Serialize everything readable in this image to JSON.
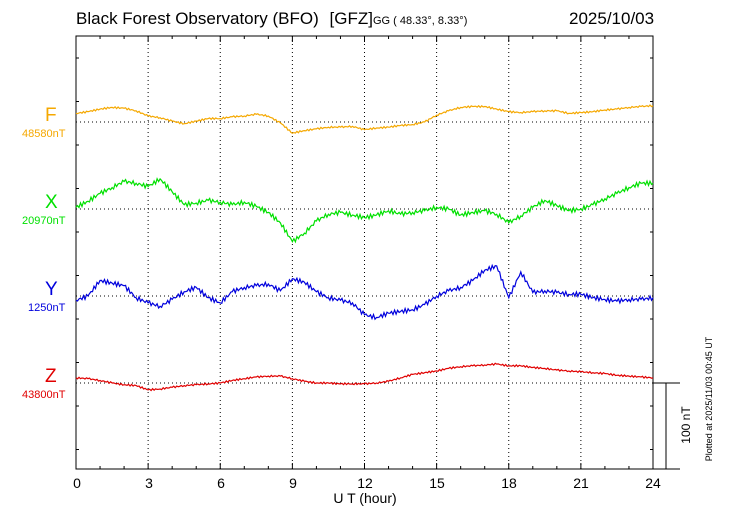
{
  "chart_data": {
    "type": "line",
    "title": "Black Forest Observatory (BFO)",
    "tag": "[GFZ]",
    "coords": "GG ( 48.33°,   8.33°)",
    "date": "2025/10/03",
    "xlabel": "U T (hour)",
    "xlim": [
      0,
      24
    ],
    "xticks": [
      "0",
      "3",
      "6",
      "9",
      "12",
      "15",
      "18",
      "21",
      "24"
    ],
    "scale_label": "100 nT",
    "scale_nT": 100,
    "plotted": "Plotted at 2025/11/03 00:45 UT",
    "colors": {
      "F": "#f5a800",
      "X": "#00e000",
      "Y": "#0000dd",
      "Z": "#e00000"
    },
    "series": [
      {
        "name": "F",
        "baseline": "48580nT",
        "x": [
          0,
          0.5,
          1,
          1.5,
          2,
          2.5,
          3,
          3.5,
          4,
          4.5,
          5,
          5.5,
          6,
          6.5,
          7,
          7.5,
          8,
          8.5,
          9,
          9.5,
          10,
          10.5,
          11,
          11.5,
          12,
          12.5,
          13,
          13.5,
          14,
          14.5,
          15,
          15.5,
          16,
          16.5,
          17,
          17.5,
          18,
          18.5,
          19,
          19.5,
          20,
          20.5,
          21,
          21.5,
          22,
          22.5,
          23,
          23.5,
          24
        ],
        "offset_nT": [
          10,
          12,
          15,
          17,
          16,
          13,
          7,
          5,
          1,
          -2,
          1,
          4,
          4,
          6,
          7,
          9,
          7,
          -1,
          -13,
          -10,
          -8,
          -6,
          -6,
          -5,
          -9,
          -7,
          -6,
          -4,
          -3,
          0,
          8,
          13,
          17,
          18,
          18,
          15,
          12,
          11,
          12,
          13,
          13,
          10,
          11,
          12,
          14,
          15,
          17,
          18,
          19
        ]
      },
      {
        "name": "X",
        "baseline": "20970nT",
        "x": [
          0,
          0.5,
          1,
          1.5,
          2,
          2.5,
          3,
          3.5,
          4,
          4.5,
          5,
          5.5,
          6,
          6.5,
          7,
          7.5,
          8,
          8.5,
          9,
          9.5,
          10,
          10.5,
          11,
          11.5,
          12,
          12.5,
          13,
          13.5,
          14,
          14.5,
          15,
          15.5,
          16,
          16.5,
          17,
          17.5,
          18,
          18.5,
          19,
          19.5,
          20,
          20.5,
          21,
          21.5,
          22,
          22.5,
          23,
          23.5,
          24
        ],
        "offset_nT": [
          2,
          9,
          18,
          25,
          32,
          30,
          26,
          35,
          20,
          5,
          7,
          10,
          8,
          5,
          8,
          3,
          -4,
          -16,
          -38,
          -28,
          -14,
          -6,
          -4,
          -7,
          -10,
          -7,
          -2,
          -6,
          -4,
          -2,
          2,
          0,
          -7,
          -4,
          -2,
          -6,
          -16,
          -8,
          2,
          10,
          4,
          -2,
          0,
          5,
          12,
          18,
          25,
          30,
          30
        ]
      },
      {
        "name": "Y",
        "baseline": "1250nT",
        "x": [
          0,
          0.5,
          1,
          1.5,
          2,
          2.5,
          3,
          3.5,
          4,
          4.5,
          5,
          5.5,
          6,
          6.5,
          7,
          7.5,
          8,
          8.5,
          9,
          9.5,
          10,
          10.5,
          11,
          11.5,
          12,
          12.5,
          13,
          13.5,
          14,
          14.5,
          15,
          15.5,
          16,
          16.5,
          17,
          17.5,
          18,
          18.5,
          19,
          19.5,
          20,
          20.5,
          21,
          21.5,
          22,
          22.5,
          23,
          23.5,
          24
        ],
        "offset_nT": [
          -5,
          0,
          18,
          15,
          12,
          -2,
          -8,
          -12,
          -4,
          5,
          10,
          -2,
          -8,
          5,
          10,
          12,
          14,
          6,
          20,
          16,
          5,
          -2,
          -5,
          -8,
          -22,
          -25,
          -20,
          -18,
          -16,
          -10,
          0,
          6,
          10,
          18,
          30,
          35,
          -2,
          28,
          4,
          6,
          4,
          2,
          2,
          -2,
          -4,
          -6,
          -4,
          -4,
          -2
        ]
      },
      {
        "name": "Z",
        "baseline": "43800nT",
        "x": [
          0,
          0.5,
          1,
          1.5,
          2,
          2.5,
          3,
          3.5,
          4,
          4.5,
          5,
          5.5,
          6,
          6.5,
          7,
          7.5,
          8,
          8.5,
          9,
          9.5,
          10,
          10.5,
          11,
          11.5,
          12,
          12.5,
          13,
          13.5,
          14,
          14.5,
          15,
          15.5,
          16,
          16.5,
          17,
          17.5,
          18,
          18.5,
          19,
          19.5,
          20,
          20.5,
          21,
          21.5,
          22,
          22.5,
          23,
          23.5,
          24
        ],
        "offset_nT": [
          6,
          5,
          3,
          0,
          -2,
          -3,
          -8,
          -7,
          -5,
          -3,
          -2,
          -1,
          0,
          3,
          5,
          7,
          8,
          8,
          5,
          2,
          0,
          0,
          -1,
          -1,
          -1,
          0,
          2,
          6,
          10,
          12,
          14,
          17,
          19,
          20,
          21,
          22,
          20,
          20,
          18,
          17,
          15,
          14,
          13,
          12,
          11,
          9,
          8,
          7,
          6
        ]
      }
    ]
  }
}
